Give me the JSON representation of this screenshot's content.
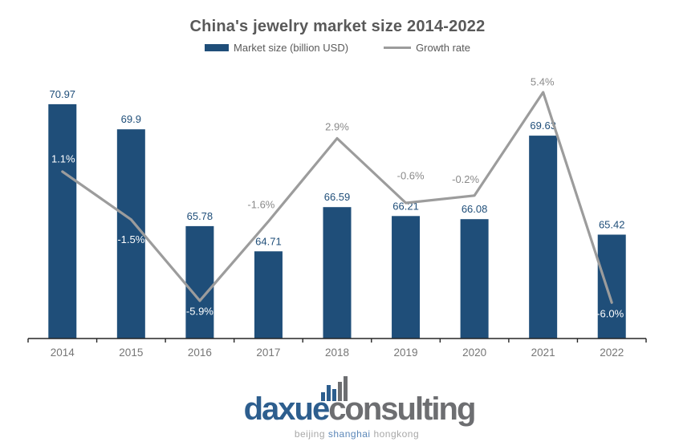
{
  "title": "China's jewelry market size 2014-2022",
  "legend": {
    "market_size_label": "Market size (billion USD)",
    "growth_rate_label": "Growth rate"
  },
  "colors": {
    "bar": "#1f4e79",
    "line": "#9c9c9c",
    "value_label": "#1f4e79",
    "growth_label_outside": "#8a8a8a",
    "growth_label_inside": "#ffffff",
    "axis": "#262626",
    "tick_label": "#767676",
    "title": "#595959",
    "legend_text": "#595959",
    "logo_blue": "#2d5e8e",
    "logo_gray": "#6d6e71",
    "tagline_blue": "#5b87b8",
    "tagline_gray": "#a8a8a8"
  },
  "chart_data": {
    "type": "combo",
    "title": "China's jewelry market size 2014-2022",
    "categories": [
      "2014",
      "2015",
      "2016",
      "2017",
      "2018",
      "2019",
      "2020",
      "2021",
      "2022"
    ],
    "series": [
      {
        "name": "Market size (billion USD)",
        "type": "bar",
        "values": [
          70.97,
          69.9,
          65.78,
          64.71,
          66.59,
          66.21,
          66.08,
          69.63,
          65.42
        ],
        "value_labels": [
          "70.97",
          "69.9",
          "65.78",
          "64.71",
          "66.59",
          "66.21",
          "66.08",
          "69.63",
          "65.42"
        ]
      },
      {
        "name": "Growth rate",
        "type": "line",
        "values": [
          1.1,
          -1.5,
          -5.9,
          -1.6,
          2.9,
          -0.6,
          -0.2,
          5.4,
          -6.0
        ],
        "value_labels": [
          "1.1%",
          "-1.5%",
          "-5.9%",
          "-1.6%",
          "2.9%",
          "-0.6%",
          "-0.2%",
          "5.4%",
          "-6.0%"
        ]
      }
    ],
    "xlabel": "",
    "ylabel": "",
    "primary_axis": {
      "visible": false,
      "min": 61,
      "max": 72
    },
    "secondary_axis": {
      "visible": false,
      "min": -8,
      "max": 7
    },
    "grid": false,
    "legend_position": "top"
  },
  "footer_logo": {
    "brand_primary": "daxue",
    "brand_secondary": "consulting",
    "tagline": {
      "city1": "beijing",
      "city2": "shanghai",
      "city3": "hongkong"
    }
  }
}
